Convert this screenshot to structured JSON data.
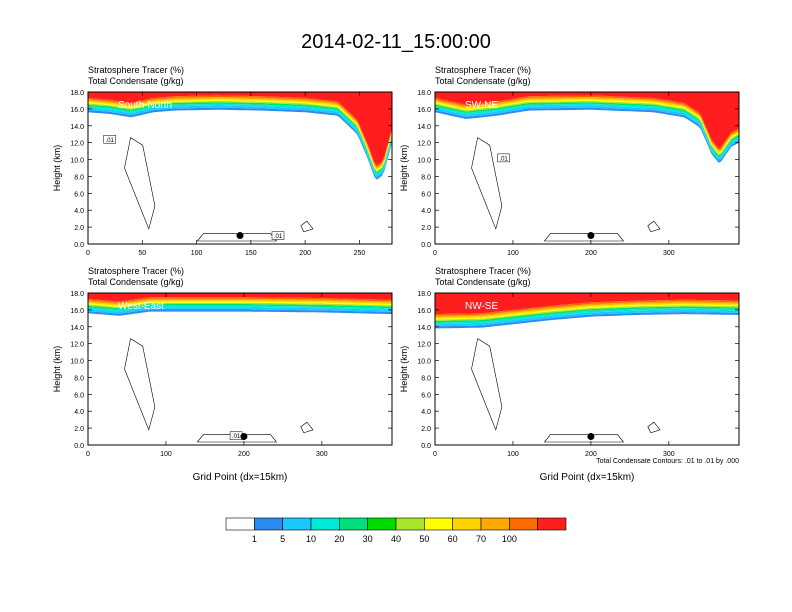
{
  "title": "2014-02-11_15:00:00",
  "legend": {
    "colors": [
      "#ffffff",
      "#2a8cf0",
      "#18c8ff",
      "#00e8d8",
      "#00e07a",
      "#00dc00",
      "#a8e628",
      "#ffff00",
      "#ffd200",
      "#ffa800",
      "#ff6a00",
      "#ff1e1e"
    ],
    "labels": [
      "1",
      "5",
      "10",
      "20",
      "30",
      "40",
      "50",
      "60",
      "70",
      "100"
    ]
  },
  "contour_note": "Total Condensate Contours: .01 to .01 by .000",
  "chart_data": [
    {
      "type": "heatmap",
      "title": "South-North",
      "subtitle": [
        "Stratosphere Tracer   (%)",
        "Total Condensate   (g/kg)"
      ],
      "xlabel": "",
      "ylabel": "Height (km)",
      "xlim": [
        0,
        280
      ],
      "ylim": [
        0,
        18
      ],
      "xticks": [
        0,
        50,
        100,
        150,
        200,
        250
      ],
      "yticks": [
        "0.0",
        "2.0",
        "4.0",
        "6.0",
        "8.0",
        "10.0",
        "12.0",
        "14.0",
        "16.0",
        "18.0"
      ],
      "marker": {
        "x": 140,
        "y": 1.0
      },
      "tracer_bottom_km": [
        [
          0,
          15.6
        ],
        [
          20,
          15.4
        ],
        [
          40,
          15.0
        ],
        [
          60,
          15.6
        ],
        [
          80,
          15.8
        ],
        [
          120,
          15.9
        ],
        [
          160,
          15.8
        ],
        [
          200,
          15.6
        ],
        [
          230,
          15.2
        ],
        [
          248,
          13.0
        ],
        [
          258,
          10.0
        ],
        [
          265,
          7.5
        ],
        [
          272,
          8.2
        ],
        [
          280,
          12.0
        ]
      ],
      "contour_labels": [
        {
          "x": 20,
          "y": 12.4,
          "text": ".01"
        },
        {
          "x": 175,
          "y": 1.0,
          "text": ".01"
        }
      ]
    },
    {
      "type": "heatmap",
      "title": "SW-NE",
      "subtitle": [
        "Stratosphere Tracer   (%)",
        "Total Condensate   (g/kg)"
      ],
      "xlabel": "",
      "ylabel": "Height (km)",
      "xlim": [
        0,
        390
      ],
      "ylim": [
        0,
        18
      ],
      "xticks": [
        0,
        100,
        200,
        300
      ],
      "yticks": [
        "0.0",
        "2.0",
        "4.0",
        "6.0",
        "8.0",
        "10.0",
        "12.0",
        "14.0",
        "16.0",
        "18.0"
      ],
      "marker": {
        "x": 200,
        "y": 1.0
      },
      "tracer_bottom_km": [
        [
          0,
          15.6
        ],
        [
          40,
          14.8
        ],
        [
          80,
          15.2
        ],
        [
          120,
          15.8
        ],
        [
          200,
          15.9
        ],
        [
          280,
          15.6
        ],
        [
          320,
          15.0
        ],
        [
          340,
          13.8
        ],
        [
          355,
          10.6
        ],
        [
          365,
          9.5
        ],
        [
          380,
          11.5
        ],
        [
          390,
          12.0
        ]
      ],
      "contour_labels": [
        {
          "x": 88,
          "y": 10.2,
          "text": ".01"
        }
      ]
    },
    {
      "type": "heatmap",
      "title": "West-East",
      "subtitle": [
        "Stratosphere Tracer   (%)",
        "Total Condensate   (g/kg)"
      ],
      "xlabel": "Grid Point (dx=15km)",
      "ylabel": "Height (km)",
      "xlim": [
        0,
        390
      ],
      "ylim": [
        0,
        18
      ],
      "xticks": [
        0,
        100,
        200,
        300
      ],
      "yticks": [
        "0.0",
        "2.0",
        "4.0",
        "6.0",
        "8.0",
        "10.0",
        "12.0",
        "14.0",
        "16.0",
        "18.0"
      ],
      "marker": {
        "x": 200,
        "y": 1.0
      },
      "tracer_bottom_km": [
        [
          0,
          15.6
        ],
        [
          40,
          15.3
        ],
        [
          80,
          15.8
        ],
        [
          200,
          15.8
        ],
        [
          300,
          15.7
        ],
        [
          390,
          15.5
        ]
      ],
      "contour_labels": [
        {
          "x": 190,
          "y": 1.1,
          "text": ".01"
        }
      ]
    },
    {
      "type": "heatmap",
      "title": "NW-SE",
      "subtitle": [
        "Stratosphere Tracer   (%)",
        "Total Condensate   (g/kg)"
      ],
      "xlabel": "Grid Point (dx=15km)",
      "ylabel": "Height (km)",
      "xlim": [
        0,
        390
      ],
      "ylim": [
        0,
        18
      ],
      "xticks": [
        0,
        100,
        200,
        300
      ],
      "yticks": [
        "0.0",
        "2.0",
        "4.0",
        "6.0",
        "8.0",
        "10.0",
        "12.0",
        "14.0",
        "16.0",
        "18.0"
      ],
      "marker": {
        "x": 200,
        "y": 1.0
      },
      "tracer_bottom_km": [
        [
          0,
          13.8
        ],
        [
          60,
          13.9
        ],
        [
          100,
          14.3
        ],
        [
          150,
          14.8
        ],
        [
          200,
          15.2
        ],
        [
          260,
          15.4
        ],
        [
          320,
          15.5
        ],
        [
          390,
          15.4
        ]
      ],
      "contour_labels": []
    }
  ]
}
